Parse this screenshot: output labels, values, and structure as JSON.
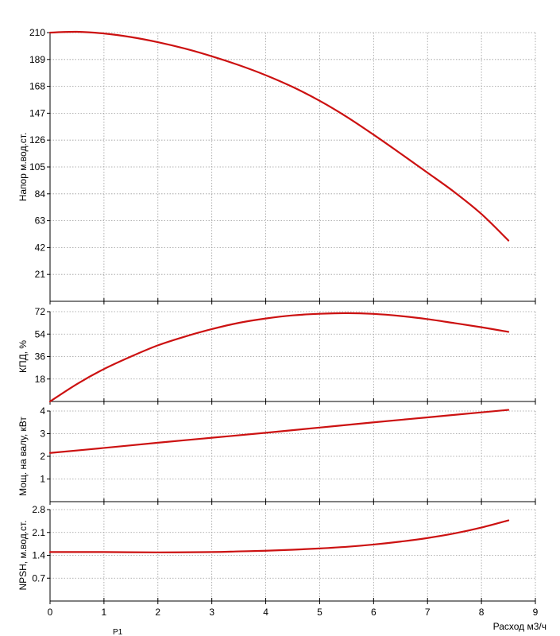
{
  "chart_data": {
    "type": "line",
    "xlabel": "Расход м3/ч",
    "xlim": [
      0,
      9
    ],
    "xticks": [
      0,
      1,
      2,
      3,
      4,
      5,
      6,
      7,
      8,
      9
    ],
    "line_color": "#cc1111",
    "grid": true,
    "footer_label": "P1",
    "panels": [
      {
        "id": "head",
        "ylabel": "Напор м.вод.ст.",
        "ylim": [
          0,
          210
        ],
        "yticks": [
          21,
          42,
          63,
          84,
          105,
          126,
          147,
          168,
          189,
          210
        ],
        "ytick_labels": [
          "21",
          "42",
          "63",
          "84",
          "105",
          "126",
          "147",
          "168",
          "189",
          "210"
        ],
        "series": [
          {
            "x": [
              0,
              0.5,
              1,
              1.5,
              2,
              2.5,
              3,
              3.5,
              4,
              4.5,
              5,
              5.5,
              6,
              6.5,
              7,
              7.5,
              8,
              8.5
            ],
            "y": [
              210,
              210.6,
              209.3,
              206.5,
              202.5,
              197.5,
              191.5,
              184.6,
              176.7,
              167.5,
              156.7,
              144.2,
              130.2,
              115.5,
              100.5,
              85.3,
              68.2,
              47.5
            ]
          }
        ]
      },
      {
        "id": "efficiency",
        "ylabel": "КПД, %",
        "ylim": [
          0,
          72
        ],
        "yticks": [
          18,
          36,
          54,
          72
        ],
        "ytick_labels": [
          "18",
          "36",
          "54",
          "72"
        ],
        "series": [
          {
            "x": [
              0,
              0.5,
              1,
              1.5,
              2,
              2.5,
              3,
              3.5,
              4,
              4.5,
              5,
              5.5,
              6,
              6.5,
              7,
              7.5,
              8,
              8.5
            ],
            "y": [
              0,
              14,
              26,
              36,
              45,
              52,
              58,
              63,
              66.5,
              69,
              70.3,
              70.8,
              70.2,
              68.5,
              66,
              62.8,
              59.5,
              55.8
            ]
          }
        ]
      },
      {
        "id": "power",
        "ylabel": "Мощ. на валу, кВт",
        "ylim": [
          0,
          4
        ],
        "yticks": [
          1,
          2,
          3,
          4
        ],
        "ytick_labels": [
          "1",
          "2",
          "3",
          "4"
        ],
        "series": [
          {
            "x": [
              0,
              1,
              2,
              3,
              4,
              5,
              6,
              7,
              8,
              8.5
            ],
            "y": [
              2.15,
              2.37,
              2.6,
              2.82,
              3.04,
              3.27,
              3.5,
              3.72,
              3.94,
              4.05
            ]
          }
        ]
      },
      {
        "id": "npsh",
        "ylabel": "NPSH, м.вод.ст.",
        "ylim": [
          0,
          2.8
        ],
        "yticks": [
          0.7,
          1.4,
          2.1,
          2.8
        ],
        "ytick_labels": [
          "0.7",
          "1.4",
          "2.1",
          "2.8"
        ],
        "series": [
          {
            "x": [
              0,
              1,
              2,
              3,
              3.5,
              4,
              4.5,
              5,
              5.5,
              6,
              6.5,
              7,
              7.5,
              8,
              8.5
            ],
            "y": [
              1.5,
              1.5,
              1.49,
              1.5,
              1.52,
              1.54,
              1.57,
              1.61,
              1.66,
              1.73,
              1.82,
              1.93,
              2.07,
              2.25,
              2.47
            ]
          }
        ]
      }
    ]
  }
}
